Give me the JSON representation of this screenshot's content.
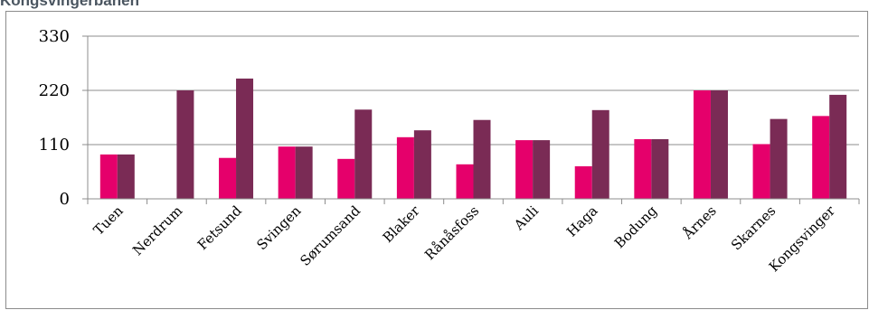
{
  "chart_data": {
    "type": "bar",
    "title": "Kongsvingerbanen",
    "xlabel": "",
    "ylabel": "",
    "ylim": [
      0,
      330
    ],
    "yticks": [
      0,
      110,
      220,
      330
    ],
    "grid": true,
    "legend": "none",
    "categories": [
      "Tuen",
      "Nerdrum",
      "Fetsund",
      "Svingen",
      "Sørumsand",
      "Blaker",
      "Rånåsfoss",
      "Auli",
      "Haga",
      "Bodung",
      "Årnes",
      "Skarnes",
      "Kongsvinger"
    ],
    "series": [
      {
        "color": "#e5006b",
        "values": [
          90,
          0,
          83,
          106,
          81,
          125,
          70,
          119,
          66,
          121,
          220,
          111,
          168
        ]
      },
      {
        "color": "#7a2b55",
        "values": [
          90,
          220,
          244,
          106,
          181,
          139,
          160,
          119,
          180,
          121,
          220,
          162,
          211
        ]
      }
    ]
  }
}
